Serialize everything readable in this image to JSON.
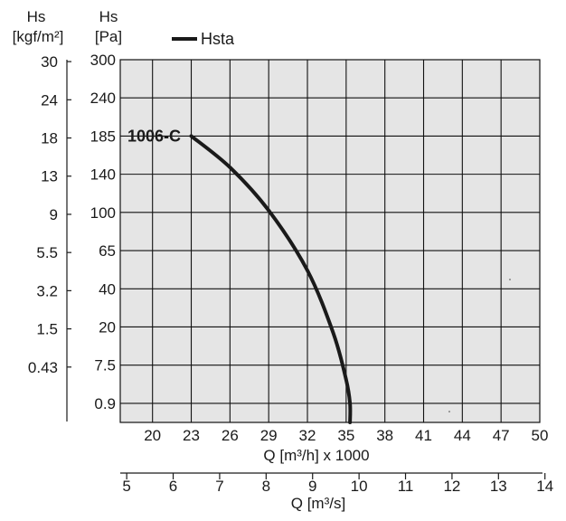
{
  "chart_data": {
    "type": "line",
    "legend": {
      "label": "Hsta",
      "placement": "top"
    },
    "series": [
      {
        "name": "1006-C",
        "points": [
          {
            "q": 23,
            "p": 185
          },
          {
            "q": 26,
            "p": 148
          },
          {
            "q": 29,
            "p": 102
          },
          {
            "q": 32,
            "p": 52
          },
          {
            "q": 34,
            "p": 18
          },
          {
            "q": 35,
            "p": 5
          },
          {
            "q": 35.3,
            "p": 0.9
          },
          {
            "q": 35.3,
            "p": 0
          }
        ]
      }
    ],
    "y_axis_pa": {
      "title": "Hs",
      "unit": "[Pa]",
      "ticks": [
        "300",
        "240",
        "185",
        "140",
        "100",
        "65",
        "40",
        "20",
        "7.5",
        "0.9"
      ]
    },
    "y_axis_kgf": {
      "title": "Hs",
      "unit": "[kgf/m²]",
      "ticks": [
        "30",
        "24",
        "18",
        "13",
        "9",
        "5.5",
        "3.2",
        "1.5",
        "0.43"
      ]
    },
    "x_axis_m3h": {
      "label": "Q [m³/h] x 1000",
      "ticks": [
        20,
        23,
        26,
        29,
        32,
        35,
        38,
        41,
        44,
        47,
        50
      ],
      "range": [
        17.5,
        50
      ]
    },
    "x_axis_m3s": {
      "label": "Q [m³/s]",
      "ticks": [
        5,
        6,
        7,
        8,
        9,
        10,
        11,
        12,
        13,
        14
      ]
    },
    "grid": true,
    "colors": {
      "plot_bg": "#e5e5e5",
      "grid": "#111111",
      "curve": "#1a1a1a"
    }
  }
}
